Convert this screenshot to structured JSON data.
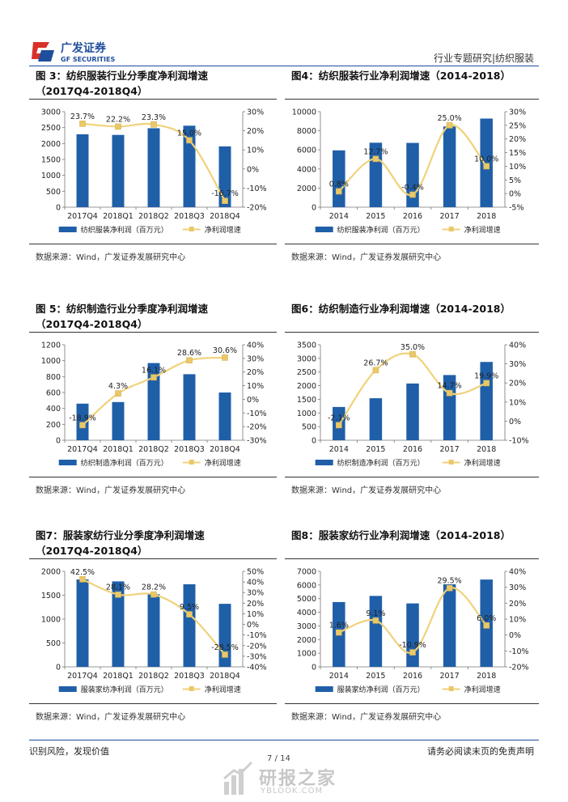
{
  "header": {
    "logo_text_cn": "广发证券",
    "logo_text_en": "GF SECURITIES",
    "category": "行业专题研究|纺织服装"
  },
  "figures": [
    {
      "id": "fig3",
      "title_line1": "图 3：纺织服装行业分季度净利润增速",
      "title_line2": "（2017Q4-2018Q4）",
      "source": "数据来源：Wind，广发证券发展研究中心",
      "legend_bar": "纺织服装净利润（百万元）",
      "legend_line": "净利润增速"
    },
    {
      "id": "fig4",
      "title_line1": "图4：纺织服装行业净利润增速（2014-2018）",
      "title_line2": "",
      "source": "数据来源：Wind，广发证券发展研究中心",
      "legend_bar": "纺织服装净利润（百万元）",
      "legend_line": "净利润增速"
    },
    {
      "id": "fig5",
      "title_line1": "图 5：纺织制造行业分季度净利润增速",
      "title_line2": "（2017Q4-2018Q4）",
      "source": "数据来源：Wind，广发证券发展研究中心",
      "legend_bar": "纺织制造净利润（百万元）",
      "legend_line": "净利润增速"
    },
    {
      "id": "fig6",
      "title_line1": "图6：纺织制造行业净利润增速（2014-2018）",
      "title_line2": "",
      "source": "数据来源：Wind，广发证券发展研究中心",
      "legend_bar": "纺织制造净利润（百万元）",
      "legend_line": "净利润增速"
    },
    {
      "id": "fig7",
      "title_line1": "图7：服装家纺行业分季度净利润增速",
      "title_line2": "（2017Q4-2018Q4）",
      "source": "数据来源：Wind，广发证券发展研究中心",
      "legend_bar": "服装家纺净利润（百万元）",
      "legend_line": "净利润增速"
    },
    {
      "id": "fig8",
      "title_line1": "图8：服装家纺行业净利润增速（2014-2018）",
      "title_line2": "",
      "source": "数据来源：Wind，广发证券发展研究中心",
      "legend_bar": "服装家纺净利润（百万元）",
      "legend_line": "净利润增速"
    }
  ],
  "chart_data": [
    {
      "type": "bar+line",
      "title": "图 3：纺织服装行业分季度净利润增速（2017Q4-2018Q4）",
      "categories": [
        "2017Q4",
        "2018Q1",
        "2018Q2",
        "2018Q3",
        "2018Q4"
      ],
      "series": [
        {
          "name": "纺织服装净利润（百万元）",
          "kind": "bar",
          "axis": "left",
          "values": [
            2290,
            2270,
            2480,
            2560,
            1910
          ]
        },
        {
          "name": "净利润增速",
          "kind": "line",
          "axis": "right",
          "values": [
            23.7,
            22.2,
            23.3,
            15.0,
            -16.7
          ],
          "labels": [
            "23.7%",
            "22.2%",
            "23.3%",
            "15.0%",
            "-16.7%"
          ]
        }
      ],
      "left_ticks": [
        0,
        500,
        1000,
        1500,
        2000,
        2500,
        3000
      ],
      "left_ylim": [
        0,
        3000
      ],
      "right_ticks": [
        -20,
        -10,
        0,
        10,
        20,
        30
      ],
      "right_ylim": [
        -20,
        30
      ],
      "right_tick_labels": [
        "-20%",
        "-10%",
        "0%",
        "10%",
        "20%",
        "30%"
      ]
    },
    {
      "type": "bar+line",
      "title": "图4：纺织服装行业净利润增速（2014-2018）",
      "categories": [
        "2014",
        "2015",
        "2016",
        "2017",
        "2018"
      ],
      "series": [
        {
          "name": "纺织服装净利润（百万元）",
          "kind": "bar",
          "axis": "left",
          "values": [
            5950,
            6750,
            6730,
            8450,
            9280
          ]
        },
        {
          "name": "净利润增速",
          "kind": "line",
          "axis": "right",
          "values": [
            0.8,
            12.7,
            -0.4,
            25.0,
            10.0
          ],
          "labels": [
            "0.8%",
            "12.7%",
            "-0.4%",
            "25.0%",
            "10.0%"
          ]
        }
      ],
      "left_ticks": [
        0,
        2000,
        4000,
        6000,
        8000,
        10000
      ],
      "left_ylim": [
        0,
        10000
      ],
      "right_ticks": [
        -5,
        0,
        5,
        10,
        15,
        20,
        25,
        30
      ],
      "right_ylim": [
        -5,
        30
      ],
      "right_tick_labels": [
        "-5%",
        "0%",
        "5%",
        "10%",
        "15%",
        "20%",
        "25%",
        "30%"
      ]
    },
    {
      "type": "bar+line",
      "title": "图 5：纺织制造行业分季度净利润增速（2017Q4-2018Q4）",
      "categories": [
        "2017Q4",
        "2018Q1",
        "2018Q2",
        "2018Q3",
        "2018Q4"
      ],
      "series": [
        {
          "name": "纺织制造净利润（百万元）",
          "kind": "bar",
          "axis": "left",
          "values": [
            460,
            480,
            970,
            830,
            600
          ]
        },
        {
          "name": "净利润增速",
          "kind": "line",
          "axis": "right",
          "values": [
            -18.9,
            4.3,
            16.1,
            28.6,
            30.6
          ],
          "labels": [
            "-18.9%",
            "4.3%",
            "16.1%",
            "28.6%",
            "30.6%"
          ]
        }
      ],
      "left_ticks": [
        0,
        200,
        400,
        600,
        800,
        1000,
        1200
      ],
      "left_ylim": [
        0,
        1200
      ],
      "right_ticks": [
        -30,
        -20,
        -10,
        0,
        10,
        20,
        30,
        40
      ],
      "right_ylim": [
        -30,
        40
      ],
      "right_tick_labels": [
        "-30%",
        "-20%",
        "-10%",
        "0%",
        "10%",
        "20%",
        "30%",
        "40%"
      ]
    },
    {
      "type": "bar+line",
      "title": "图6：纺织制造行业净利润增速（2014-2018）",
      "categories": [
        "2014",
        "2015",
        "2016",
        "2017",
        "2018"
      ],
      "series": [
        {
          "name": "纺织制造净利润（百万元）",
          "kind": "bar",
          "axis": "left",
          "values": [
            1220,
            1540,
            2080,
            2390,
            2870
          ]
        },
        {
          "name": "净利润增速",
          "kind": "line",
          "axis": "right",
          "values": [
            -2.1,
            26.7,
            35.0,
            14.7,
            19.9
          ],
          "labels": [
            "-2.1%",
            "26.7%",
            "35.0%",
            "14.7%",
            "19.9%"
          ]
        }
      ],
      "left_ticks": [
        0,
        500,
        1000,
        1500,
        2000,
        2500,
        3000,
        3500
      ],
      "left_ylim": [
        0,
        3500
      ],
      "right_ticks": [
        -10,
        0,
        10,
        20,
        30,
        40
      ],
      "right_ylim": [
        -10,
        40
      ],
      "right_tick_labels": [
        "-10%",
        "0%",
        "10%",
        "20%",
        "30%",
        "40%"
      ]
    },
    {
      "type": "bar+line",
      "title": "图7：服装家纺行业分季度净利润增速（2017Q4-2018Q4）",
      "categories": [
        "2017Q4",
        "2018Q1",
        "2018Q2",
        "2018Q3",
        "2018Q4"
      ],
      "series": [
        {
          "name": "服装家纺净利润（百万元）",
          "kind": "bar",
          "axis": "left",
          "values": [
            1830,
            1790,
            1520,
            1730,
            1320
          ]
        },
        {
          "name": "净利润增速",
          "kind": "line",
          "axis": "right",
          "values": [
            42.5,
            28.1,
            28.2,
            9.5,
            -28.5
          ],
          "labels": [
            "42.5%",
            "28.1%",
            "28.2%",
            "9.5%",
            "-28.5%"
          ]
        }
      ],
      "left_ticks": [
        0,
        500,
        1000,
        1500,
        2000
      ],
      "left_ylim": [
        0,
        2000
      ],
      "right_ticks": [
        -40,
        -30,
        -20,
        -10,
        0,
        10,
        20,
        30,
        40,
        50
      ],
      "right_ylim": [
        -40,
        50
      ],
      "right_tick_labels": [
        "-40%",
        "-30%",
        "-20%",
        "-10%",
        "0%",
        "10%",
        "20%",
        "30%",
        "40%",
        "50%"
      ]
    },
    {
      "type": "bar+line",
      "title": "图8：服装家纺行业净利润增速（2014-2018）",
      "categories": [
        "2014",
        "2015",
        "2016",
        "2017",
        "2018"
      ],
      "series": [
        {
          "name": "服装家纺净利润（百万元）",
          "kind": "bar",
          "axis": "left",
          "values": [
            4750,
            5200,
            4650,
            6050,
            6400
          ]
        },
        {
          "name": "净利润增速",
          "kind": "line",
          "axis": "right",
          "values": [
            1.6,
            9.1,
            -10.9,
            29.5,
            6.0
          ],
          "labels": [
            "1.6%",
            "9.1%",
            "-10.9%",
            "29.5%",
            "6.0%"
          ]
        }
      ],
      "left_ticks": [
        0,
        1000,
        2000,
        3000,
        4000,
        5000,
        6000,
        7000
      ],
      "left_ylim": [
        0,
        7000
      ],
      "right_ticks": [
        -20,
        -10,
        0,
        10,
        20,
        30,
        40
      ],
      "right_ylim": [
        -20,
        40
      ],
      "right_tick_labels": [
        "-20%",
        "-10%",
        "0%",
        "10%",
        "20%",
        "30%",
        "40%"
      ]
    }
  ],
  "footer": {
    "left": "识别风险，发现价值",
    "right": "请务必阅读末页的免责声明",
    "page": "7 / 14"
  },
  "watermark": {
    "name": "研报之家",
    "url": "YBLOOK.COM"
  },
  "colors": {
    "bar": "#1f5fa8",
    "line": "#f0d27a",
    "marker": "#e9c86a",
    "brand_blue": "#1f4e9c",
    "brand_red": "#d6322a"
  }
}
